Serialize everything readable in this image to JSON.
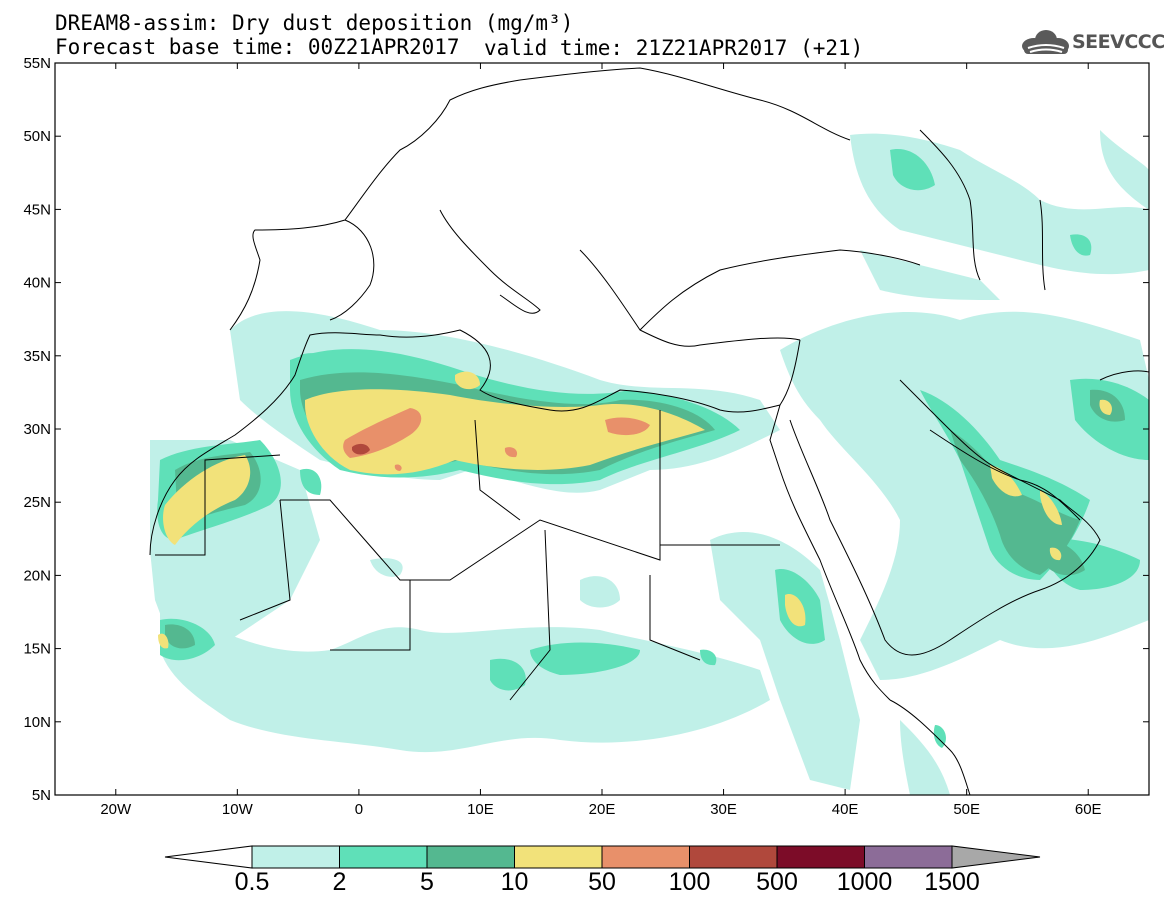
{
  "title": {
    "line1": "DREAM8-assim: Dry dust deposition (mg/m³)",
    "line2": "Forecast base time: 00Z21APR2017",
    "valid": "valid time: 21Z21APR2017 (+21)"
  },
  "logo": {
    "text": "SEEVCCC",
    "icon": "cloud-icon"
  },
  "axes": {
    "lat_labels": [
      "55N",
      "50N",
      "45N",
      "40N",
      "35N",
      "30N",
      "25N",
      "20N",
      "15N",
      "10N",
      "5N"
    ],
    "lon_labels": [
      "20W",
      "10W",
      "0",
      "10E",
      "20E",
      "30E",
      "40E",
      "50E",
      "60E"
    ],
    "lon_range": [
      -25,
      65
    ],
    "lat_range": [
      5,
      55
    ]
  },
  "colorbar": {
    "labels": [
      "0.5",
      "2",
      "5",
      "10",
      "50",
      "100",
      "500",
      "1000",
      "1500"
    ],
    "colors": [
      "#c0f0e8",
      "#5fe0b8",
      "#54b890",
      "#f2e27a",
      "#e8906a",
      "#b0483c",
      "#7c0c28",
      "#8c6c98",
      "#a8a8a8"
    ]
  }
}
